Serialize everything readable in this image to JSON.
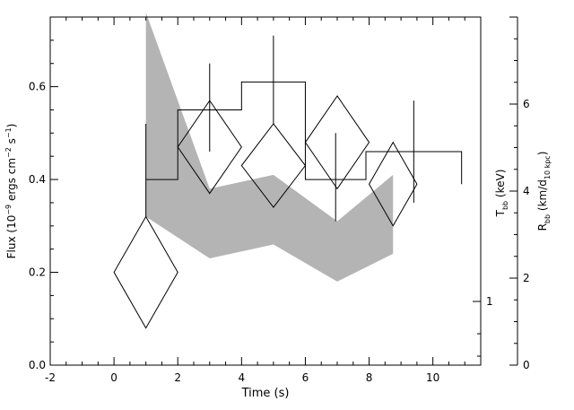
{
  "chart_data": {
    "type": "scatter",
    "xlabel": "Time (s)",
    "ylabel_left": "Flux (10^-9 ergs cm^-2 s^-1)",
    "ylabel_tbb": "T_bb (keV)",
    "ylabel_rbb": "R_bb (km/d_10 kpc)",
    "xlim": [
      -2,
      11.5
    ],
    "ylim_left": [
      0,
      0.75
    ],
    "xticks": [
      "-2",
      "0",
      "2",
      "4",
      "6",
      "8",
      "10"
    ],
    "yticks_left": [
      "0.0",
      "0.2",
      "0.4",
      "0.6"
    ],
    "yticks_rbb": [
      "0",
      "2",
      "4",
      "6"
    ],
    "tick_tbb": "1",
    "colors": {
      "band": "#b4b4b4",
      "line": "#000000"
    },
    "series": [
      {
        "kind": "flux_histogram",
        "steps": [
          {
            "x0": 1,
            "x1": 2,
            "y": 0.4,
            "err_lo": 0.32,
            "err_hi": 0.52
          },
          {
            "x0": 2,
            "x1": 4,
            "y": 0.55,
            "err_lo": 0.46,
            "err_hi": 0.65
          },
          {
            "x0": 4,
            "x1": 6,
            "y": 0.61,
            "err_lo": 0.52,
            "err_hi": 0.71
          },
          {
            "x0": 6,
            "x1": 7.9,
            "y": 0.4,
            "err_lo": 0.31,
            "err_hi": 0.5
          },
          {
            "x0": 7.9,
            "x1": 10.9,
            "y": 0.46,
            "err_lo": 0.35,
            "err_hi": 0.57
          }
        ],
        "tail": {
          "x": 10.9,
          "y": 0.39
        }
      },
      {
        "kind": "temperature_band",
        "x": [
          1,
          3,
          5,
          7,
          8.75
        ],
        "lower": [
          0.32,
          0.23,
          0.26,
          0.18,
          0.24
        ],
        "upper": [
          0.76,
          0.38,
          0.41,
          0.31,
          0.41
        ]
      },
      {
        "kind": "radius_diamonds",
        "points": [
          {
            "x": 1,
            "y": 0.2,
            "dx": 1,
            "dy": 0.12
          },
          {
            "x": 3,
            "y": 0.47,
            "dx": 1,
            "dy": 0.1
          },
          {
            "x": 5,
            "y": 0.43,
            "dx": 1,
            "dy": 0.09
          },
          {
            "x": 7,
            "y": 0.48,
            "dx": 1,
            "dy": 0.1
          },
          {
            "x": 8.75,
            "y": 0.39,
            "dx": 0.75,
            "dy": 0.09
          }
        ]
      }
    ]
  }
}
